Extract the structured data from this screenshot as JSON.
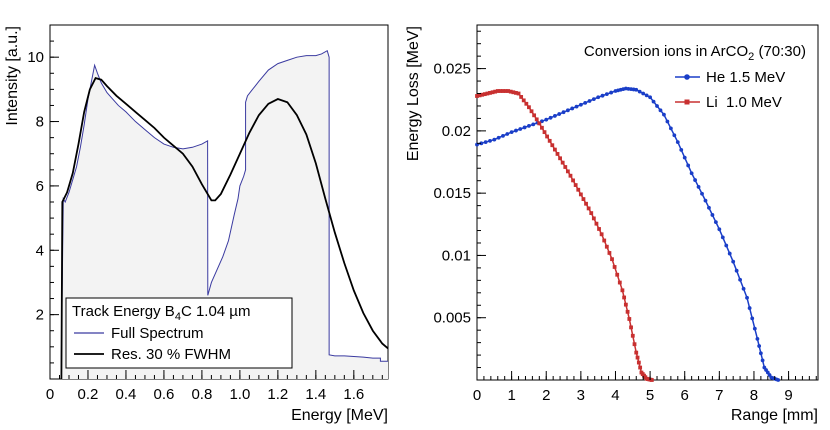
{
  "chart_data": [
    {
      "type": "line",
      "title": "",
      "xlabel": "Energy [MeV]",
      "ylabel": "Intensity [a.u.]",
      "xlim": [
        0,
        1.78
      ],
      "ylim": [
        0,
        11
      ],
      "xticks": [
        0,
        0.2,
        0.4,
        0.6,
        0.8,
        1.0,
        1.2,
        1.4,
        1.6
      ],
      "xtick_labels": [
        "0",
        "0.2",
        "0.4",
        "0.6",
        "0.8",
        "1.0",
        "1.2",
        "1.4",
        "1.6"
      ],
      "yticks": [
        2,
        4,
        6,
        8,
        10
      ],
      "ytick_labels": [
        "2",
        "4",
        "6",
        "8",
        "10"
      ],
      "legend": {
        "position": "bottom-left",
        "title_pre": "Track Energy B",
        "title_sub": "4",
        "title_post": "C 1.04 µm"
      },
      "series": [
        {
          "name": "Full Spectrum",
          "color": "#3a3aa0",
          "points": [
            [
              0.06,
              0
            ],
            [
              0.06,
              0.8
            ],
            [
              0.07,
              5.6
            ],
            [
              0.08,
              5.5
            ],
            [
              0.1,
              5.8
            ],
            [
              0.12,
              6.2
            ],
            [
              0.14,
              6.6
            ],
            [
              0.16,
              7.2
            ],
            [
              0.18,
              7.9
            ],
            [
              0.2,
              8.7
            ],
            [
              0.22,
              9.3
            ],
            [
              0.235,
              9.75
            ],
            [
              0.25,
              9.5
            ],
            [
              0.27,
              9.2
            ],
            [
              0.3,
              8.9
            ],
            [
              0.33,
              8.7
            ],
            [
              0.36,
              8.5
            ],
            [
              0.4,
              8.3
            ],
            [
              0.45,
              8.0
            ],
            [
              0.5,
              7.75
            ],
            [
              0.55,
              7.5
            ],
            [
              0.6,
              7.3
            ],
            [
              0.65,
              7.2
            ],
            [
              0.7,
              7.15
            ],
            [
              0.75,
              7.2
            ],
            [
              0.8,
              7.3
            ],
            [
              0.83,
              7.4
            ],
            [
              0.831,
              2.6
            ],
            [
              0.85,
              3.0
            ],
            [
              0.88,
              3.4
            ],
            [
              0.91,
              3.8
            ],
            [
              0.94,
              4.3
            ],
            [
              0.97,
              5.1
            ],
            [
              0.99,
              5.6
            ],
            [
              1.0,
              6.0
            ],
            [
              1.02,
              6.3
            ],
            [
              1.03,
              6.5
            ],
            [
              1.03,
              8.6
            ],
            [
              1.04,
              8.8
            ],
            [
              1.06,
              8.95
            ],
            [
              1.08,
              9.1
            ],
            [
              1.1,
              9.25
            ],
            [
              1.15,
              9.6
            ],
            [
              1.2,
              9.8
            ],
            [
              1.25,
              9.9
            ],
            [
              1.3,
              10.0
            ],
            [
              1.35,
              10.05
            ],
            [
              1.4,
              10.05
            ],
            [
              1.43,
              10.1
            ],
            [
              1.46,
              10.2
            ],
            [
              1.47,
              10.0
            ],
            [
              1.47,
              0.75
            ],
            [
              1.5,
              0.72
            ],
            [
              1.55,
              0.72
            ],
            [
              1.6,
              0.7
            ],
            [
              1.65,
              0.68
            ],
            [
              1.7,
              0.65
            ],
            [
              1.74,
              0.65
            ],
            [
              1.74,
              0.55
            ],
            [
              1.78,
              0.55
            ]
          ]
        },
        {
          "name": "Res. 30 % FWHM",
          "color": "#000000",
          "points": [
            [
              0.06,
              0
            ],
            [
              0.065,
              5.5
            ],
            [
              0.09,
              5.8
            ],
            [
              0.12,
              6.4
            ],
            [
              0.15,
              7.3
            ],
            [
              0.18,
              8.3
            ],
            [
              0.21,
              9.0
            ],
            [
              0.24,
              9.35
            ],
            [
              0.27,
              9.3
            ],
            [
              0.3,
              9.1
            ],
            [
              0.35,
              8.8
            ],
            [
              0.4,
              8.55
            ],
            [
              0.45,
              8.3
            ],
            [
              0.5,
              8.05
            ],
            [
              0.55,
              7.8
            ],
            [
              0.6,
              7.5
            ],
            [
              0.65,
              7.25
            ],
            [
              0.7,
              7.0
            ],
            [
              0.75,
              6.6
            ],
            [
              0.8,
              6.05
            ],
            [
              0.85,
              5.55
            ],
            [
              0.87,
              5.55
            ],
            [
              0.9,
              5.75
            ],
            [
              0.95,
              6.35
            ],
            [
              1.0,
              7.0
            ],
            [
              1.05,
              7.65
            ],
            [
              1.1,
              8.2
            ],
            [
              1.15,
              8.55
            ],
            [
              1.2,
              8.7
            ],
            [
              1.25,
              8.6
            ],
            [
              1.3,
              8.2
            ],
            [
              1.35,
              7.6
            ],
            [
              1.4,
              6.7
            ],
            [
              1.45,
              5.6
            ],
            [
              1.5,
              4.55
            ],
            [
              1.55,
              3.6
            ],
            [
              1.6,
              2.75
            ],
            [
              1.65,
              2.05
            ],
            [
              1.7,
              1.5
            ],
            [
              1.75,
              1.1
            ],
            [
              1.78,
              0.95
            ]
          ]
        }
      ]
    },
    {
      "type": "line",
      "title_pre": "Conversion ions in ArCO",
      "title_sub": "2",
      "title_post": " (70:30)",
      "xlabel": "Range [mm]",
      "ylabel": "Energy Loss [MeV]",
      "xlim": [
        0,
        9.85
      ],
      "ylim": [
        0,
        0.0285
      ],
      "xticks": [
        0,
        1,
        2,
        3,
        4,
        5,
        6,
        7,
        8,
        9
      ],
      "xtick_labels": [
        "0",
        "1",
        "2",
        "3",
        "4",
        "5",
        "6",
        "7",
        "8",
        "9"
      ],
      "yticks": [
        0.005,
        0.01,
        0.015,
        0.02,
        0.025
      ],
      "ytick_labels": [
        "0.005",
        "0.01",
        "0.015",
        "0.02",
        "0.025"
      ],
      "legend": {
        "position": "top-right"
      },
      "series": [
        {
          "name": "He 1.5 MeV",
          "color": "#1a3ec8",
          "marker": "circle",
          "points": [
            [
              0,
              0.0189
            ],
            [
              0.5,
              0.0193
            ],
            [
              1.0,
              0.0199
            ],
            [
              1.5,
              0.0204
            ],
            [
              2.0,
              0.0209
            ],
            [
              2.5,
              0.0215
            ],
            [
              3.0,
              0.0221
            ],
            [
              3.5,
              0.0227
            ],
            [
              4.0,
              0.0232
            ],
            [
              4.3,
              0.0234
            ],
            [
              4.6,
              0.0233
            ],
            [
              5.0,
              0.0227
            ],
            [
              5.4,
              0.0213
            ],
            [
              5.8,
              0.0191
            ],
            [
              6.2,
              0.0166
            ],
            [
              6.6,
              0.0144
            ],
            [
              7.0,
              0.0121
            ],
            [
              7.4,
              0.0095
            ],
            [
              7.8,
              0.0066
            ],
            [
              8.1,
              0.0033
            ],
            [
              8.3,
              0.001
            ],
            [
              8.5,
              0.0002
            ],
            [
              8.7,
              0.0
            ]
          ]
        },
        {
          "name": "Li  1.0 MeV",
          "color": "#c83030",
          "marker": "square",
          "points": [
            [
              0,
              0.0228
            ],
            [
              0.3,
              0.023
            ],
            [
              0.6,
              0.0232
            ],
            [
              0.9,
              0.0232
            ],
            [
              1.2,
              0.023
            ],
            [
              1.5,
              0.0219
            ],
            [
              1.8,
              0.0206
            ],
            [
              2.1,
              0.0192
            ],
            [
              2.4,
              0.0178
            ],
            [
              2.7,
              0.0164
            ],
            [
              3.0,
              0.0149
            ],
            [
              3.3,
              0.0134
            ],
            [
              3.6,
              0.0117
            ],
            [
              3.9,
              0.0097
            ],
            [
              4.2,
              0.0072
            ],
            [
              4.4,
              0.0049
            ],
            [
              4.6,
              0.0022
            ],
            [
              4.75,
              0.0006
            ],
            [
              4.9,
              0.0001
            ],
            [
              5.05,
              0.0
            ]
          ]
        }
      ]
    }
  ]
}
